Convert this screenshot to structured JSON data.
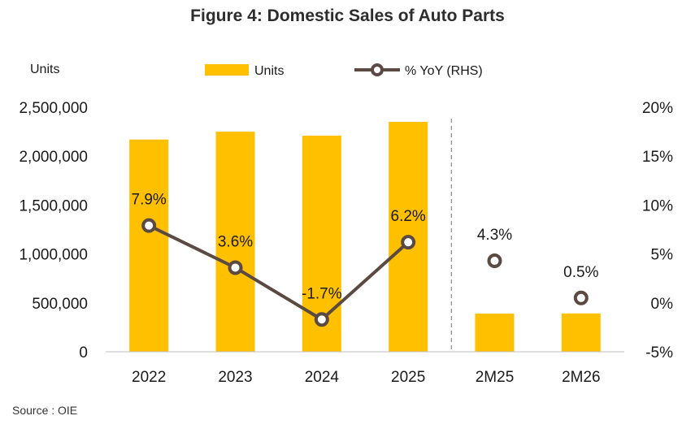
{
  "chart_data": {
    "type": "bar",
    "title": "Figure 4:  Domestic Sales of Auto Parts",
    "ylabel": "Units",
    "categories": [
      "2022",
      "2023",
      "2024",
      "2025",
      "2M25",
      "2M26"
    ],
    "series": [
      {
        "name": "Units",
        "type": "bar",
        "axis": "left",
        "color": "#FFC000",
        "values": [
          2170000,
          2250000,
          2210000,
          2350000,
          390000,
          392000
        ]
      },
      {
        "name": "% YoY (RHS)",
        "type": "line",
        "axis": "right",
        "color": "#5B4A42",
        "values": [
          7.9,
          3.6,
          -1.7,
          6.2,
          4.3,
          0.5
        ],
        "labels": [
          "7.9%",
          "3.6%",
          "-1.7%",
          "6.2%",
          "4.3%",
          "0.5%"
        ],
        "connected_through_index": 3
      }
    ],
    "y_left": {
      "ylim": [
        0,
        2500000
      ],
      "ticks": [
        "0",
        "500,000",
        "1,000,000",
        "1,500,000",
        "2,000,000",
        "2,500,000"
      ],
      "tick_values": [
        0,
        500000,
        1000000,
        1500000,
        2000000,
        2500000
      ]
    },
    "y_right": {
      "ylim": [
        -5,
        20
      ],
      "ticks": [
        "-5%",
        "0%",
        "5%",
        "10%",
        "15%",
        "20%"
      ],
      "tick_values": [
        -5,
        0,
        5,
        10,
        15,
        20
      ]
    },
    "divider_after_category_index": 3,
    "grid": false,
    "legend": "top-center"
  },
  "source": "Source : OIE"
}
